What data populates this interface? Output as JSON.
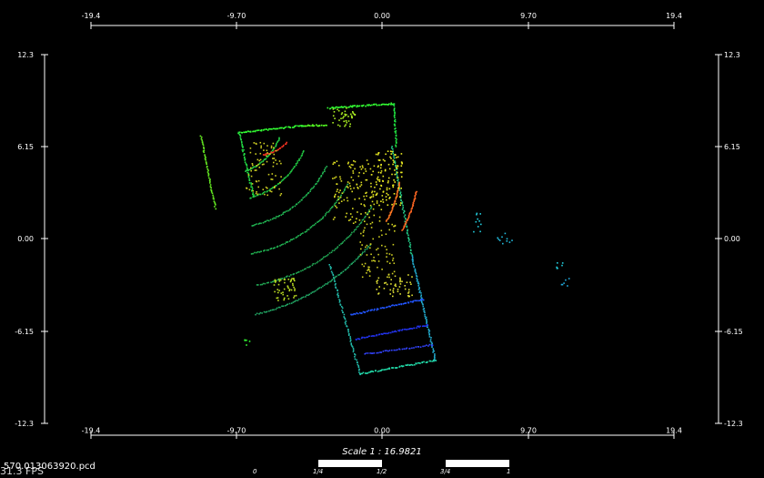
{
  "viewer": {
    "scale_text": "Scale 1 : 16.9821",
    "file_name": "570.013063920.pcd",
    "fps": "31.3 FPS",
    "x_ticks": [
      "-19.4",
      "-9.70",
      "0.00",
      "9.70",
      "19.4"
    ],
    "y_ticks": [
      "12.3",
      "6.15",
      "0.00",
      "-6.15",
      "-12.3"
    ],
    "scale_bar_labels": [
      "0",
      "1/4",
      "1/2",
      "3/4",
      "1"
    ]
  }
}
